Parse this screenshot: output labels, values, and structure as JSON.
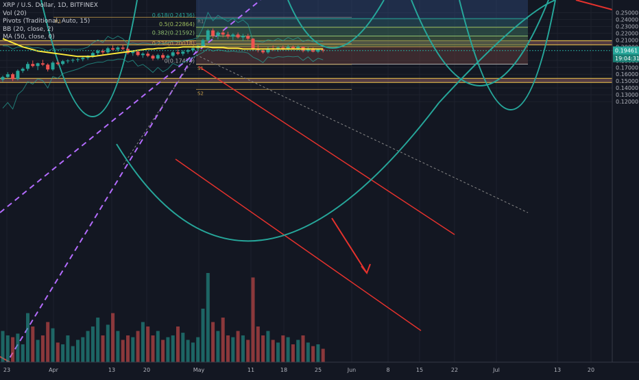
{
  "chart_data": {
    "type": "candlestick",
    "title": "XRP / U.S. Dollar, 1D, BITFINEX",
    "indicators": [
      "Vol (20)",
      "Pivots (Traditional, Auto, 15)",
      "BB (20, close, 2)",
      "MA (50, close, 0)"
    ],
    "x_ticks": [
      "23",
      "Apr",
      "13",
      "20",
      "May",
      "11",
      "18",
      "25",
      "Jun",
      "8",
      "15",
      "22",
      "Jul",
      "13",
      "20"
    ],
    "y_ticks": [
      "0.25000",
      "0.24000",
      "0.23000",
      "0.22000",
      "0.21000",
      "0.20000",
      "0.18000",
      "0.17000",
      "0.16000",
      "0.15000",
      "0.14000",
      "0.13000",
      "0.12000"
    ],
    "ylim": [
      0.1185,
      0.2515
    ],
    "last_price": "0.19461",
    "countdown": "19:04:31",
    "fib_labels": [
      "0.618(0.24136)",
      "0.5(0.22864)",
      "0.382(0.21592)",
      "0.236(0.20018)",
      "0(0.17474)"
    ],
    "fib_values": [
      0.24136,
      0.22864,
      0.21592,
      0.20018,
      0.17474
    ],
    "pivot_labels": [
      "R1",
      "P",
      "S1",
      "S2",
      "R1"
    ],
    "ohlc": [
      [
        0.152,
        0.158,
        0.149,
        0.156
      ],
      [
        0.156,
        0.163,
        0.154,
        0.16
      ],
      [
        0.16,
        0.162,
        0.15,
        0.153
      ],
      [
        0.153,
        0.167,
        0.151,
        0.165
      ],
      [
        0.165,
        0.17,
        0.162,
        0.168
      ],
      [
        0.168,
        0.178,
        0.165,
        0.175
      ],
      [
        0.175,
        0.18,
        0.17,
        0.172
      ],
      [
        0.172,
        0.177,
        0.166,
        0.176
      ],
      [
        0.176,
        0.181,
        0.172,
        0.174
      ],
      [
        0.174,
        0.176,
        0.164,
        0.167
      ],
      [
        0.167,
        0.179,
        0.165,
        0.177
      ],
      [
        0.177,
        0.18,
        0.173,
        0.175
      ],
      [
        0.175,
        0.181,
        0.173,
        0.179
      ],
      [
        0.179,
        0.182,
        0.176,
        0.18
      ],
      [
        0.18,
        0.183,
        0.177,
        0.181
      ],
      [
        0.181,
        0.184,
        0.178,
        0.182
      ],
      [
        0.182,
        0.186,
        0.179,
        0.184
      ],
      [
        0.184,
        0.188,
        0.181,
        0.187
      ],
      [
        0.187,
        0.193,
        0.184,
        0.191
      ],
      [
        0.191,
        0.196,
        0.187,
        0.194
      ],
      [
        0.194,
        0.197,
        0.189,
        0.192
      ],
      [
        0.192,
        0.2,
        0.19,
        0.198
      ],
      [
        0.198,
        0.202,
        0.194,
        0.196
      ],
      [
        0.196,
        0.201,
        0.193,
        0.199
      ],
      [
        0.199,
        0.203,
        0.195,
        0.197
      ],
      [
        0.197,
        0.199,
        0.189,
        0.191
      ],
      [
        0.191,
        0.195,
        0.187,
        0.193
      ],
      [
        0.193,
        0.196,
        0.186,
        0.188
      ],
      [
        0.188,
        0.192,
        0.184,
        0.19
      ],
      [
        0.19,
        0.193,
        0.185,
        0.187
      ],
      [
        0.187,
        0.189,
        0.18,
        0.183
      ],
      [
        0.183,
        0.19,
        0.181,
        0.188
      ],
      [
        0.188,
        0.191,
        0.181,
        0.184
      ],
      [
        0.184,
        0.189,
        0.182,
        0.187
      ],
      [
        0.187,
        0.194,
        0.185,
        0.192
      ],
      [
        0.192,
        0.196,
        0.188,
        0.19
      ],
      [
        0.19,
        0.195,
        0.187,
        0.193
      ],
      [
        0.193,
        0.197,
        0.19,
        0.195
      ],
      [
        0.195,
        0.199,
        0.192,
        0.198
      ],
      [
        0.198,
        0.203,
        0.195,
        0.201
      ],
      [
        0.201,
        0.212,
        0.199,
        0.21
      ],
      [
        0.21,
        0.226,
        0.208,
        0.224
      ],
      [
        0.224,
        0.227,
        0.213,
        0.216
      ],
      [
        0.216,
        0.223,
        0.211,
        0.221
      ],
      [
        0.221,
        0.225,
        0.214,
        0.218
      ],
      [
        0.218,
        0.222,
        0.212,
        0.215
      ],
      [
        0.215,
        0.22,
        0.21,
        0.218
      ],
      [
        0.218,
        0.221,
        0.212,
        0.214
      ],
      [
        0.214,
        0.219,
        0.209,
        0.216
      ],
      [
        0.216,
        0.219,
        0.21,
        0.212
      ],
      [
        0.212,
        0.213,
        0.194,
        0.197
      ],
      [
        0.197,
        0.203,
        0.192,
        0.195
      ],
      [
        0.195,
        0.198,
        0.19,
        0.192
      ],
      [
        0.192,
        0.2,
        0.19,
        0.198
      ],
      [
        0.198,
        0.202,
        0.194,
        0.196
      ],
      [
        0.196,
        0.201,
        0.193,
        0.199
      ],
      [
        0.199,
        0.202,
        0.195,
        0.197
      ],
      [
        0.197,
        0.203,
        0.195,
        0.2
      ],
      [
        0.2,
        0.202,
        0.196,
        0.198
      ],
      [
        0.198,
        0.202,
        0.195,
        0.2
      ],
      [
        0.2,
        0.201,
        0.192,
        0.194
      ],
      [
        0.194,
        0.2,
        0.192,
        0.198
      ],
      [
        0.198,
        0.199,
        0.192,
        0.193
      ],
      [
        0.193,
        0.197,
        0.191,
        0.196
      ],
      [
        0.196,
        0.197,
        0.192,
        0.1946
      ]
    ],
    "volume": [
      0.35,
      0.3,
      0.28,
      0.32,
      0.2,
      0.55,
      0.4,
      0.25,
      0.3,
      0.45,
      0.38,
      0.22,
      0.2,
      0.3,
      0.18,
      0.25,
      0.28,
      0.35,
      0.4,
      0.5,
      0.3,
      0.42,
      0.55,
      0.35,
      0.25,
      0.3,
      0.28,
      0.35,
      0.45,
      0.4,
      0.3,
      0.35,
      0.25,
      0.28,
      0.3,
      0.4,
      0.33,
      0.25,
      0.22,
      0.28,
      0.6,
      1.0,
      0.45,
      0.35,
      0.5,
      0.3,
      0.28,
      0.35,
      0.3,
      0.25,
      0.95,
      0.4,
      0.3,
      0.35,
      0.25,
      0.22,
      0.3,
      0.28,
      0.2,
      0.25,
      0.3,
      0.22,
      0.18,
      0.2,
      0.15
    ],
    "ma50": [
      0.212,
      0.209,
      0.206,
      0.203,
      0.2,
      0.198,
      0.196,
      0.194,
      0.193,
      0.192,
      0.191,
      0.19,
      0.189,
      0.188,
      0.187,
      0.186,
      0.186,
      0.186,
      0.186,
      0.187,
      0.188,
      0.189,
      0.19,
      0.191,
      0.192,
      0.193,
      0.194,
      0.195,
      0.196,
      0.197,
      0.197,
      0.198,
      0.198,
      0.199,
      0.199,
      0.199,
      0.2,
      0.2,
      0.2,
      0.2,
      0.2,
      0.2,
      0.199,
      0.199,
      0.199,
      0.198,
      0.198,
      0.198,
      0.197,
      0.197,
      0.197,
      0.197,
      0.197,
      0.197,
      0.197,
      0.197,
      0.197,
      0.197,
      0.197,
      0.197,
      0.197,
      0.197,
      0.197,
      0.197,
      0.197
    ],
    "sr_zones": [
      [
        0.203,
        0.209
      ],
      [
        0.148,
        0.154
      ]
    ]
  }
}
